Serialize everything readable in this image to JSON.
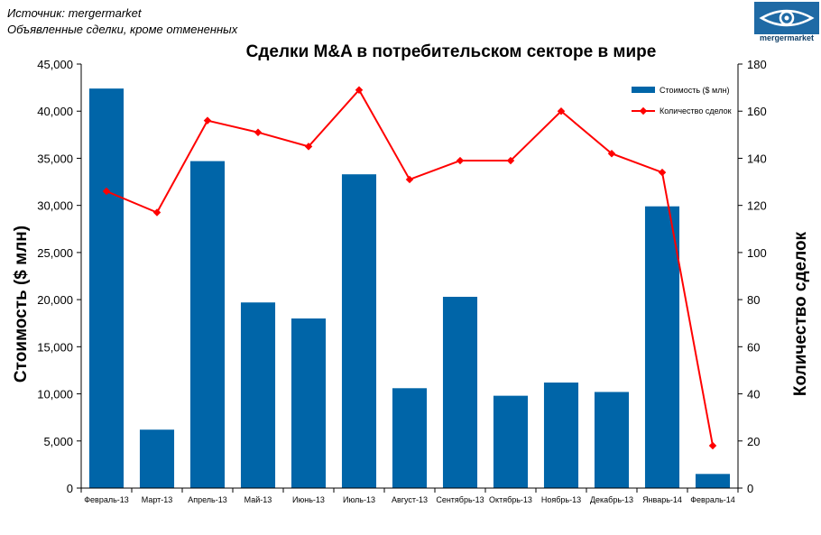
{
  "source_lines": [
    "Источник: mergermarket",
    "Объявленные сделки, кроме отмененных"
  ],
  "logo": {
    "text": "mergermarket"
  },
  "colors": {
    "bar": "#0065a8",
    "line": "#ff0000"
  },
  "chart_data": {
    "type": "bar",
    "title": "Сделки M&A в потребительском секторе в мире",
    "ylabel": "Стоимость  ($ млн)",
    "y2label": "Количество сделок",
    "categories": [
      "Февраль-13",
      "Март-13",
      "Апрель-13",
      "Май-13",
      "Июнь-13",
      "Июль-13",
      "Август-13",
      "Сентябрь-13",
      "Октябрь-13",
      "Ноябрь-13",
      "Декабрь-13",
      "Январь-14",
      "Февраль-14"
    ],
    "ylim": [
      0,
      45000
    ],
    "y2lim": [
      0,
      180
    ],
    "yticks": [
      "0",
      "5,000",
      "10,000",
      "15,000",
      "20,000",
      "25,000",
      "30,000",
      "35,000",
      "40,000",
      "45,000"
    ],
    "y2ticks": [
      "0",
      "20",
      "40",
      "60",
      "80",
      "100",
      "120",
      "140",
      "160",
      "180"
    ],
    "series": [
      {
        "name": "Стоимость ($ млн)",
        "type": "bar",
        "axis": "left",
        "values": [
          42400,
          6200,
          34700,
          19700,
          18000,
          33300,
          10600,
          20300,
          9800,
          11200,
          10200,
          29900,
          1500
        ]
      },
      {
        "name": "Количество сделок",
        "type": "line",
        "axis": "right",
        "values": [
          126,
          117,
          156,
          151,
          145,
          169,
          131,
          139,
          139,
          160,
          142,
          134,
          18
        ]
      }
    ],
    "legend_position": "top-right",
    "grid": false
  }
}
